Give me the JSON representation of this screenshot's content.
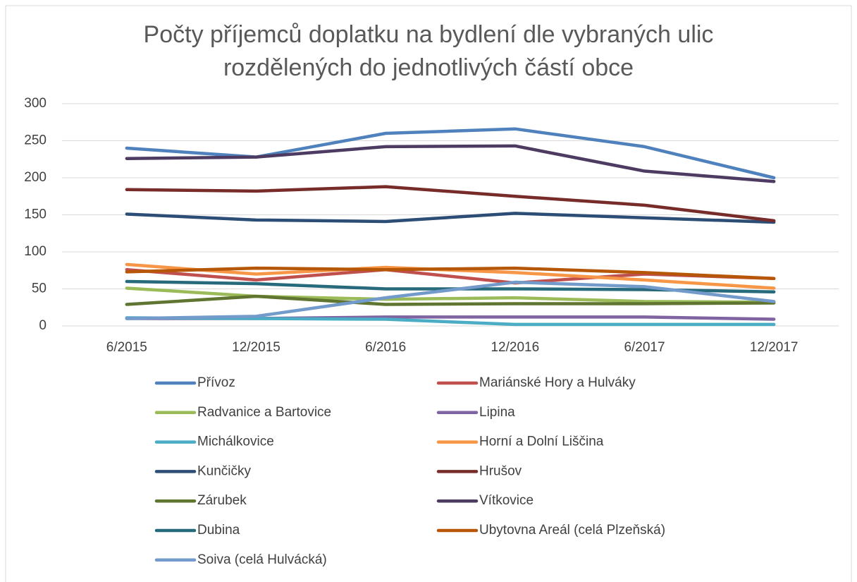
{
  "chart_data": {
    "type": "line",
    "title": "Počty příjemců doplatku na bydlení dle vybraných ulic rozdělených do jednotlivých částí obce",
    "categories": [
      "6/2015",
      "12/2015",
      "6/2016",
      "12/2016",
      "6/2017",
      "12/2017"
    ],
    "ylim": [
      0,
      300
    ],
    "yticks": [
      0,
      50,
      100,
      150,
      200,
      250,
      300
    ],
    "grid": true,
    "legend": "bottom",
    "series": [
      {
        "name": "Přívoz",
        "color": "#4f81bd",
        "values": [
          240,
          228,
          260,
          266,
          242,
          200
        ]
      },
      {
        "name": "Mariánské Hory a Hulváky",
        "color": "#c0504d",
        "values": [
          76,
          62,
          76,
          58,
          70,
          64
        ]
      },
      {
        "name": "Radvanice a Bartovice",
        "color": "#9bbb59",
        "values": [
          51,
          40,
          36,
          38,
          33,
          32
        ]
      },
      {
        "name": "Lipina",
        "color": "#8064a2",
        "values": [
          10,
          10,
          12,
          12,
          12,
          9
        ]
      },
      {
        "name": "Michálkovice",
        "color": "#4bacc6",
        "values": [
          11,
          10,
          9,
          2,
          2,
          2
        ]
      },
      {
        "name": "Horní a Dolní Liščina",
        "color": "#f79646",
        "values": [
          83,
          70,
          79,
          72,
          62,
          51
        ]
      },
      {
        "name": "Kunčičky",
        "color": "#2c4d75",
        "values": [
          151,
          143,
          141,
          152,
          146,
          140
        ]
      },
      {
        "name": "Hrušov",
        "color": "#772c2a",
        "values": [
          184,
          182,
          188,
          175,
          163,
          142
        ]
      },
      {
        "name": "Zárubek",
        "color": "#5f7530",
        "values": [
          29,
          40,
          29,
          30,
          30,
          31
        ]
      },
      {
        "name": "Vítkovice",
        "color": "#4d3b62",
        "values": [
          226,
          228,
          242,
          243,
          209,
          195
        ]
      },
      {
        "name": "Dubina",
        "color": "#276a7c",
        "values": [
          60,
          57,
          50,
          50,
          49,
          46
        ]
      },
      {
        "name": "Ubytovna Areál (celá Plzeňská)",
        "color": "#b65708",
        "values": [
          73,
          78,
          76,
          78,
          72,
          64
        ]
      },
      {
        "name": "Soiva (celá Hulvácká)",
        "color": "#729aca",
        "values": [
          10,
          13,
          38,
          59,
          53,
          33
        ]
      }
    ]
  }
}
